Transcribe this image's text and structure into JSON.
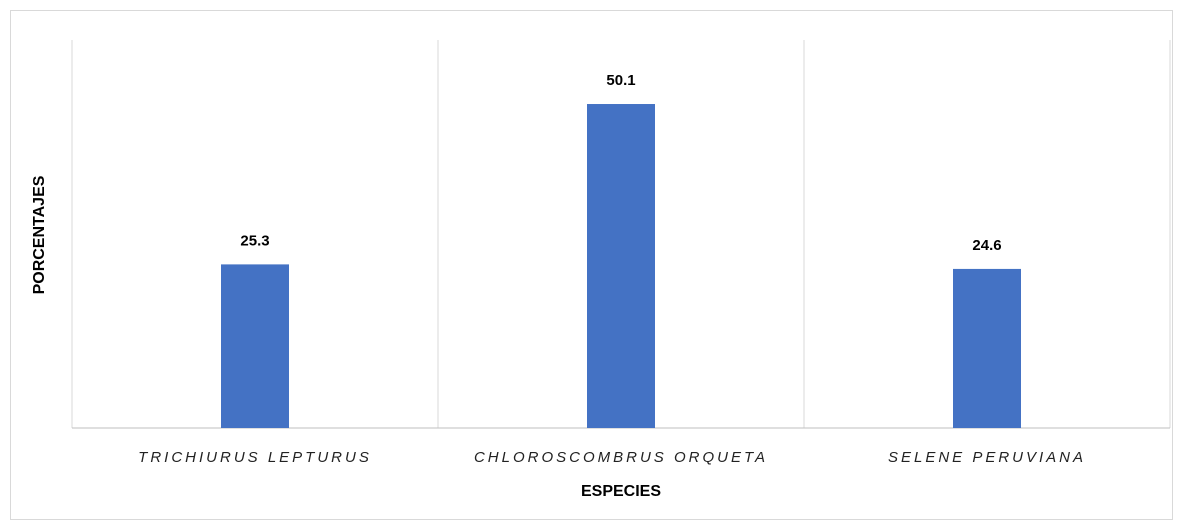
{
  "chart_data": {
    "type": "bar",
    "x_label": "ESPECIES",
    "y_label": "PORCENTAJES",
    "categories": [
      "TRICHIURUS LEPTURUS",
      "CHLOROSCOMBRUS ORQUETA",
      "SELENE PERUVIANA"
    ],
    "values": [
      25.3,
      50.1,
      24.6
    ],
    "color": "#4472c4",
    "ylim": [
      0,
      60
    ],
    "grid": true,
    "data_labels": true
  }
}
